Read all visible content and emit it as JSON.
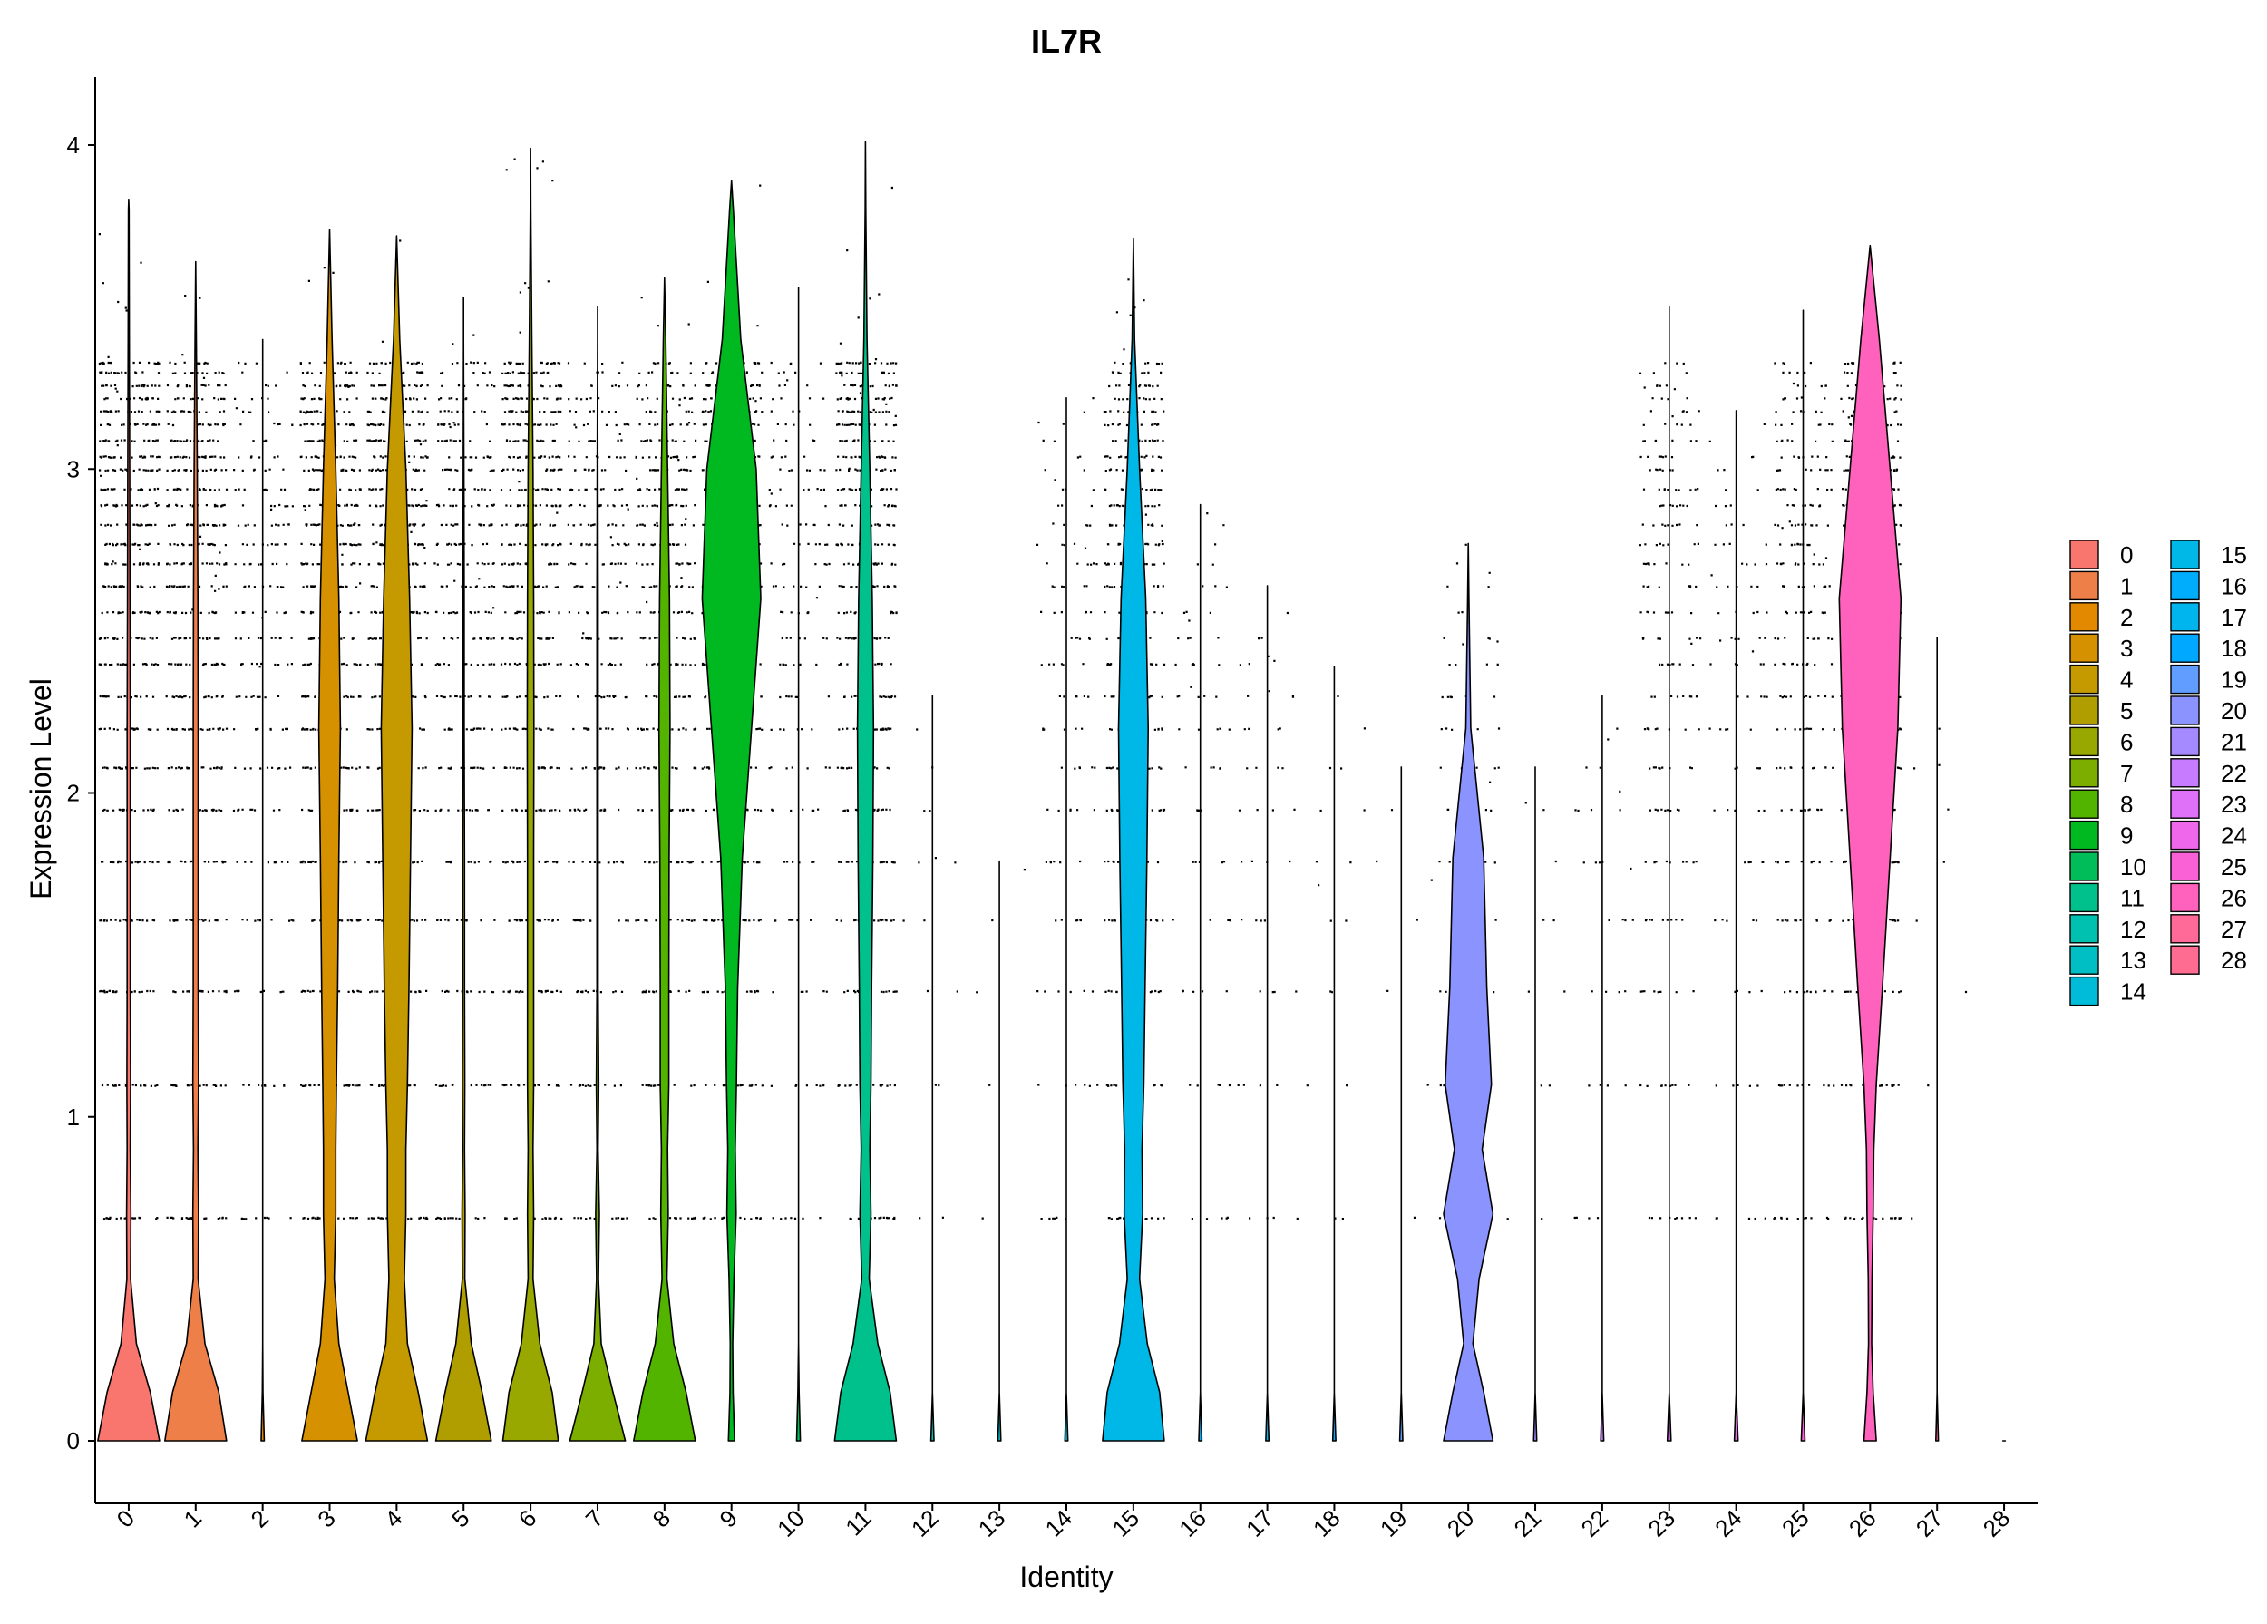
{
  "chart_data": {
    "type": "violin",
    "title": "IL7R",
    "xlabel": "Identity",
    "ylabel": "Expression Level",
    "ylim": [
      -0.2,
      4.2
    ],
    "yticks": [
      0,
      1,
      2,
      3,
      4
    ],
    "ytick_labels": [
      "0",
      "1",
      "2",
      "3",
      "4"
    ],
    "grid": false,
    "legend_position": "right",
    "categories": [
      "0",
      "1",
      "2",
      "3",
      "4",
      "5",
      "6",
      "7",
      "8",
      "9",
      "10",
      "11",
      "12",
      "13",
      "14",
      "15",
      "16",
      "17",
      "18",
      "19",
      "20",
      "21",
      "22",
      "23",
      "24",
      "25",
      "26",
      "27",
      "28"
    ],
    "colors": [
      "#F8766D",
      "#EF7F49",
      "#E38900",
      "#D59100",
      "#C49A00",
      "#B09E00",
      "#99A800",
      "#7CAE00",
      "#53B400",
      "#00B81F",
      "#00BC59",
      "#00C08B",
      "#00C0B0",
      "#00BFC4",
      "#00BCD8",
      "#00B8E7",
      "#00ACFC",
      "#00B5EE",
      "#00A9FF",
      "#619CFF",
      "#8B93FF",
      "#A58AFF",
      "#C77CFF",
      "#DF70F8",
      "#EF67EB",
      "#FB61D7",
      "#FF62BC",
      "#FF6A98",
      "#FF6C91"
    ],
    "max_values": [
      3.83,
      3.64,
      3.4,
      3.74,
      3.72,
      3.53,
      3.99,
      3.5,
      3.59,
      3.89,
      3.56,
      4.01,
      2.3,
      1.79,
      3.22,
      3.71,
      2.89,
      2.64,
      2.39,
      2.08,
      2.77,
      2.08,
      2.3,
      3.5,
      3.18,
      3.49,
      3.69,
      2.48,
      0.0
    ],
    "violin_profiles": {
      "levels": [
        0,
        0.15,
        0.3,
        0.5,
        0.7,
        0.9,
        1.1,
        1.4,
        1.8,
        2.2,
        2.6,
        3.0,
        3.4,
        3.8
      ],
      "widths": [
        [
          1.0,
          0.7,
          0.25,
          0.06,
          0.07,
          0.05,
          0.06,
          0.05,
          0.05,
          0.05,
          0.04,
          0.03,
          0.02,
          0.01
        ],
        [
          1.0,
          0.75,
          0.3,
          0.08,
          0.09,
          0.07,
          0.09,
          0.08,
          0.08,
          0.08,
          0.07,
          0.05,
          0.02,
          0.01
        ],
        [
          0.05,
          0.01,
          0.0,
          0.0,
          0.0,
          0.0,
          0.0,
          0.0,
          0.0,
          0.0,
          0.0,
          0.0,
          0.0,
          0.0
        ],
        [
          0.9,
          0.6,
          0.3,
          0.15,
          0.2,
          0.2,
          0.22,
          0.26,
          0.3,
          0.35,
          0.3,
          0.2,
          0.08,
          0.02
        ],
        [
          1.0,
          0.7,
          0.35,
          0.25,
          0.3,
          0.3,
          0.35,
          0.4,
          0.45,
          0.5,
          0.42,
          0.3,
          0.1,
          0.02
        ],
        [
          0.9,
          0.6,
          0.25,
          0.04,
          0.05,
          0.03,
          0.04,
          0.03,
          0.03,
          0.02,
          0.02,
          0.01,
          0.0,
          0.0
        ],
        [
          0.9,
          0.7,
          0.3,
          0.08,
          0.1,
          0.08,
          0.1,
          0.1,
          0.1,
          0.11,
          0.1,
          0.08,
          0.04,
          0.01
        ],
        [
          0.9,
          0.5,
          0.12,
          0.03,
          0.06,
          0.02,
          0.04,
          0.02,
          0.02,
          0.02,
          0.02,
          0.01,
          0.0,
          0.0
        ],
        [
          1.0,
          0.7,
          0.3,
          0.08,
          0.12,
          0.1,
          0.14,
          0.14,
          0.15,
          0.18,
          0.16,
          0.1,
          0.04,
          0.01
        ],
        [
          0.1,
          0.05,
          0.04,
          0.08,
          0.15,
          0.12,
          0.16,
          0.2,
          0.35,
          0.65,
          0.95,
          0.8,
          0.3,
          0.06
        ],
        [
          0.06,
          0.02,
          0.0,
          0.0,
          0.0,
          0.0,
          0.0,
          0.0,
          0.0,
          0.0,
          0.0,
          0.0,
          0.0,
          0.0
        ],
        [
          1.0,
          0.8,
          0.4,
          0.12,
          0.18,
          0.14,
          0.18,
          0.2,
          0.24,
          0.26,
          0.22,
          0.14,
          0.05,
          0.01
        ],
        [
          0.05,
          0.0,
          0.0,
          0.0,
          0.0,
          0.0,
          0.0,
          0.0,
          0.0,
          0.0,
          0.0,
          0.0,
          0.0,
          0.0
        ],
        [
          0.05,
          0.0,
          0.0,
          0.0,
          0.0,
          0.0,
          0.0,
          0.0,
          0.0,
          0.0,
          0.0,
          0.0,
          0.0,
          0.0
        ],
        [
          0.05,
          0.0,
          0.0,
          0.0,
          0.0,
          0.0,
          0.0,
          0.0,
          0.0,
          0.0,
          0.0,
          0.0,
          0.0,
          0.0
        ],
        [
          1.0,
          0.85,
          0.45,
          0.2,
          0.3,
          0.28,
          0.34,
          0.38,
          0.44,
          0.48,
          0.4,
          0.2,
          0.04,
          0.01
        ],
        [
          0.05,
          0.0,
          0.0,
          0.0,
          0.0,
          0.0,
          0.0,
          0.0,
          0.0,
          0.0,
          0.0,
          0.0,
          0.0,
          0.0
        ],
        [
          0.05,
          0.0,
          0.0,
          0.0,
          0.0,
          0.0,
          0.0,
          0.0,
          0.0,
          0.0,
          0.0,
          0.0,
          0.0,
          0.0
        ],
        [
          0.05,
          0.0,
          0.0,
          0.0,
          0.0,
          0.0,
          0.0,
          0.0,
          0.0,
          0.0,
          0.0,
          0.0,
          0.0,
          0.0
        ],
        [
          0.05,
          0.0,
          0.0,
          0.0,
          0.0,
          0.0,
          0.0,
          0.0,
          0.0,
          0.0,
          0.0,
          0.0,
          0.0,
          0.0
        ],
        [
          0.8,
          0.5,
          0.15,
          0.35,
          0.8,
          0.45,
          0.75,
          0.6,
          0.5,
          0.08,
          0.02,
          0.0,
          0.0,
          0.0
        ],
        [
          0.05,
          0.0,
          0.0,
          0.0,
          0.0,
          0.0,
          0.0,
          0.0,
          0.0,
          0.0,
          0.0,
          0.0,
          0.0,
          0.0
        ],
        [
          0.05,
          0.0,
          0.0,
          0.0,
          0.0,
          0.0,
          0.0,
          0.0,
          0.0,
          0.0,
          0.0,
          0.0,
          0.0,
          0.0
        ],
        [
          0.06,
          0.0,
          0.0,
          0.0,
          0.0,
          0.0,
          0.0,
          0.0,
          0.0,
          0.0,
          0.0,
          0.0,
          0.0,
          0.0
        ],
        [
          0.06,
          0.0,
          0.0,
          0.0,
          0.0,
          0.0,
          0.0,
          0.0,
          0.0,
          0.0,
          0.0,
          0.0,
          0.0,
          0.0
        ],
        [
          0.06,
          0.0,
          0.0,
          0.0,
          0.0,
          0.0,
          0.0,
          0.0,
          0.0,
          0.0,
          0.0,
          0.0,
          0.0,
          0.0
        ],
        [
          0.2,
          0.1,
          0.05,
          0.06,
          0.1,
          0.12,
          0.2,
          0.4,
          0.65,
          0.9,
          1.0,
          0.65,
          0.3,
          0.03
        ],
        [
          0.04,
          0.0,
          0.0,
          0.0,
          0.0,
          0.0,
          0.0,
          0.0,
          0.0,
          0.0,
          0.0,
          0.0,
          0.0,
          0.0
        ],
        [
          0.04,
          0.0,
          0.0,
          0.0,
          0.0,
          0.0,
          0.0,
          0.0,
          0.0,
          0.0,
          0.0,
          0.0,
          0.0,
          0.0
        ]
      ]
    },
    "point_density": [
      1.0,
      1.0,
      0.45,
      0.95,
      1.0,
      0.7,
      0.95,
      0.6,
      0.75,
      0.85,
      0.3,
      0.9,
      0.08,
      0.06,
      0.25,
      0.75,
      0.22,
      0.2,
      0.1,
      0.06,
      0.25,
      0.08,
      0.18,
      0.4,
      0.22,
      0.5,
      0.95,
      0.04,
      0.0
    ]
  },
  "legend": {
    "items": [
      "0",
      "1",
      "2",
      "3",
      "4",
      "5",
      "6",
      "7",
      "8",
      "9",
      "10",
      "11",
      "12",
      "13",
      "14",
      "15",
      "16",
      "17",
      "18",
      "19",
      "20",
      "21",
      "22",
      "23",
      "24",
      "25",
      "26",
      "27",
      "28"
    ]
  }
}
